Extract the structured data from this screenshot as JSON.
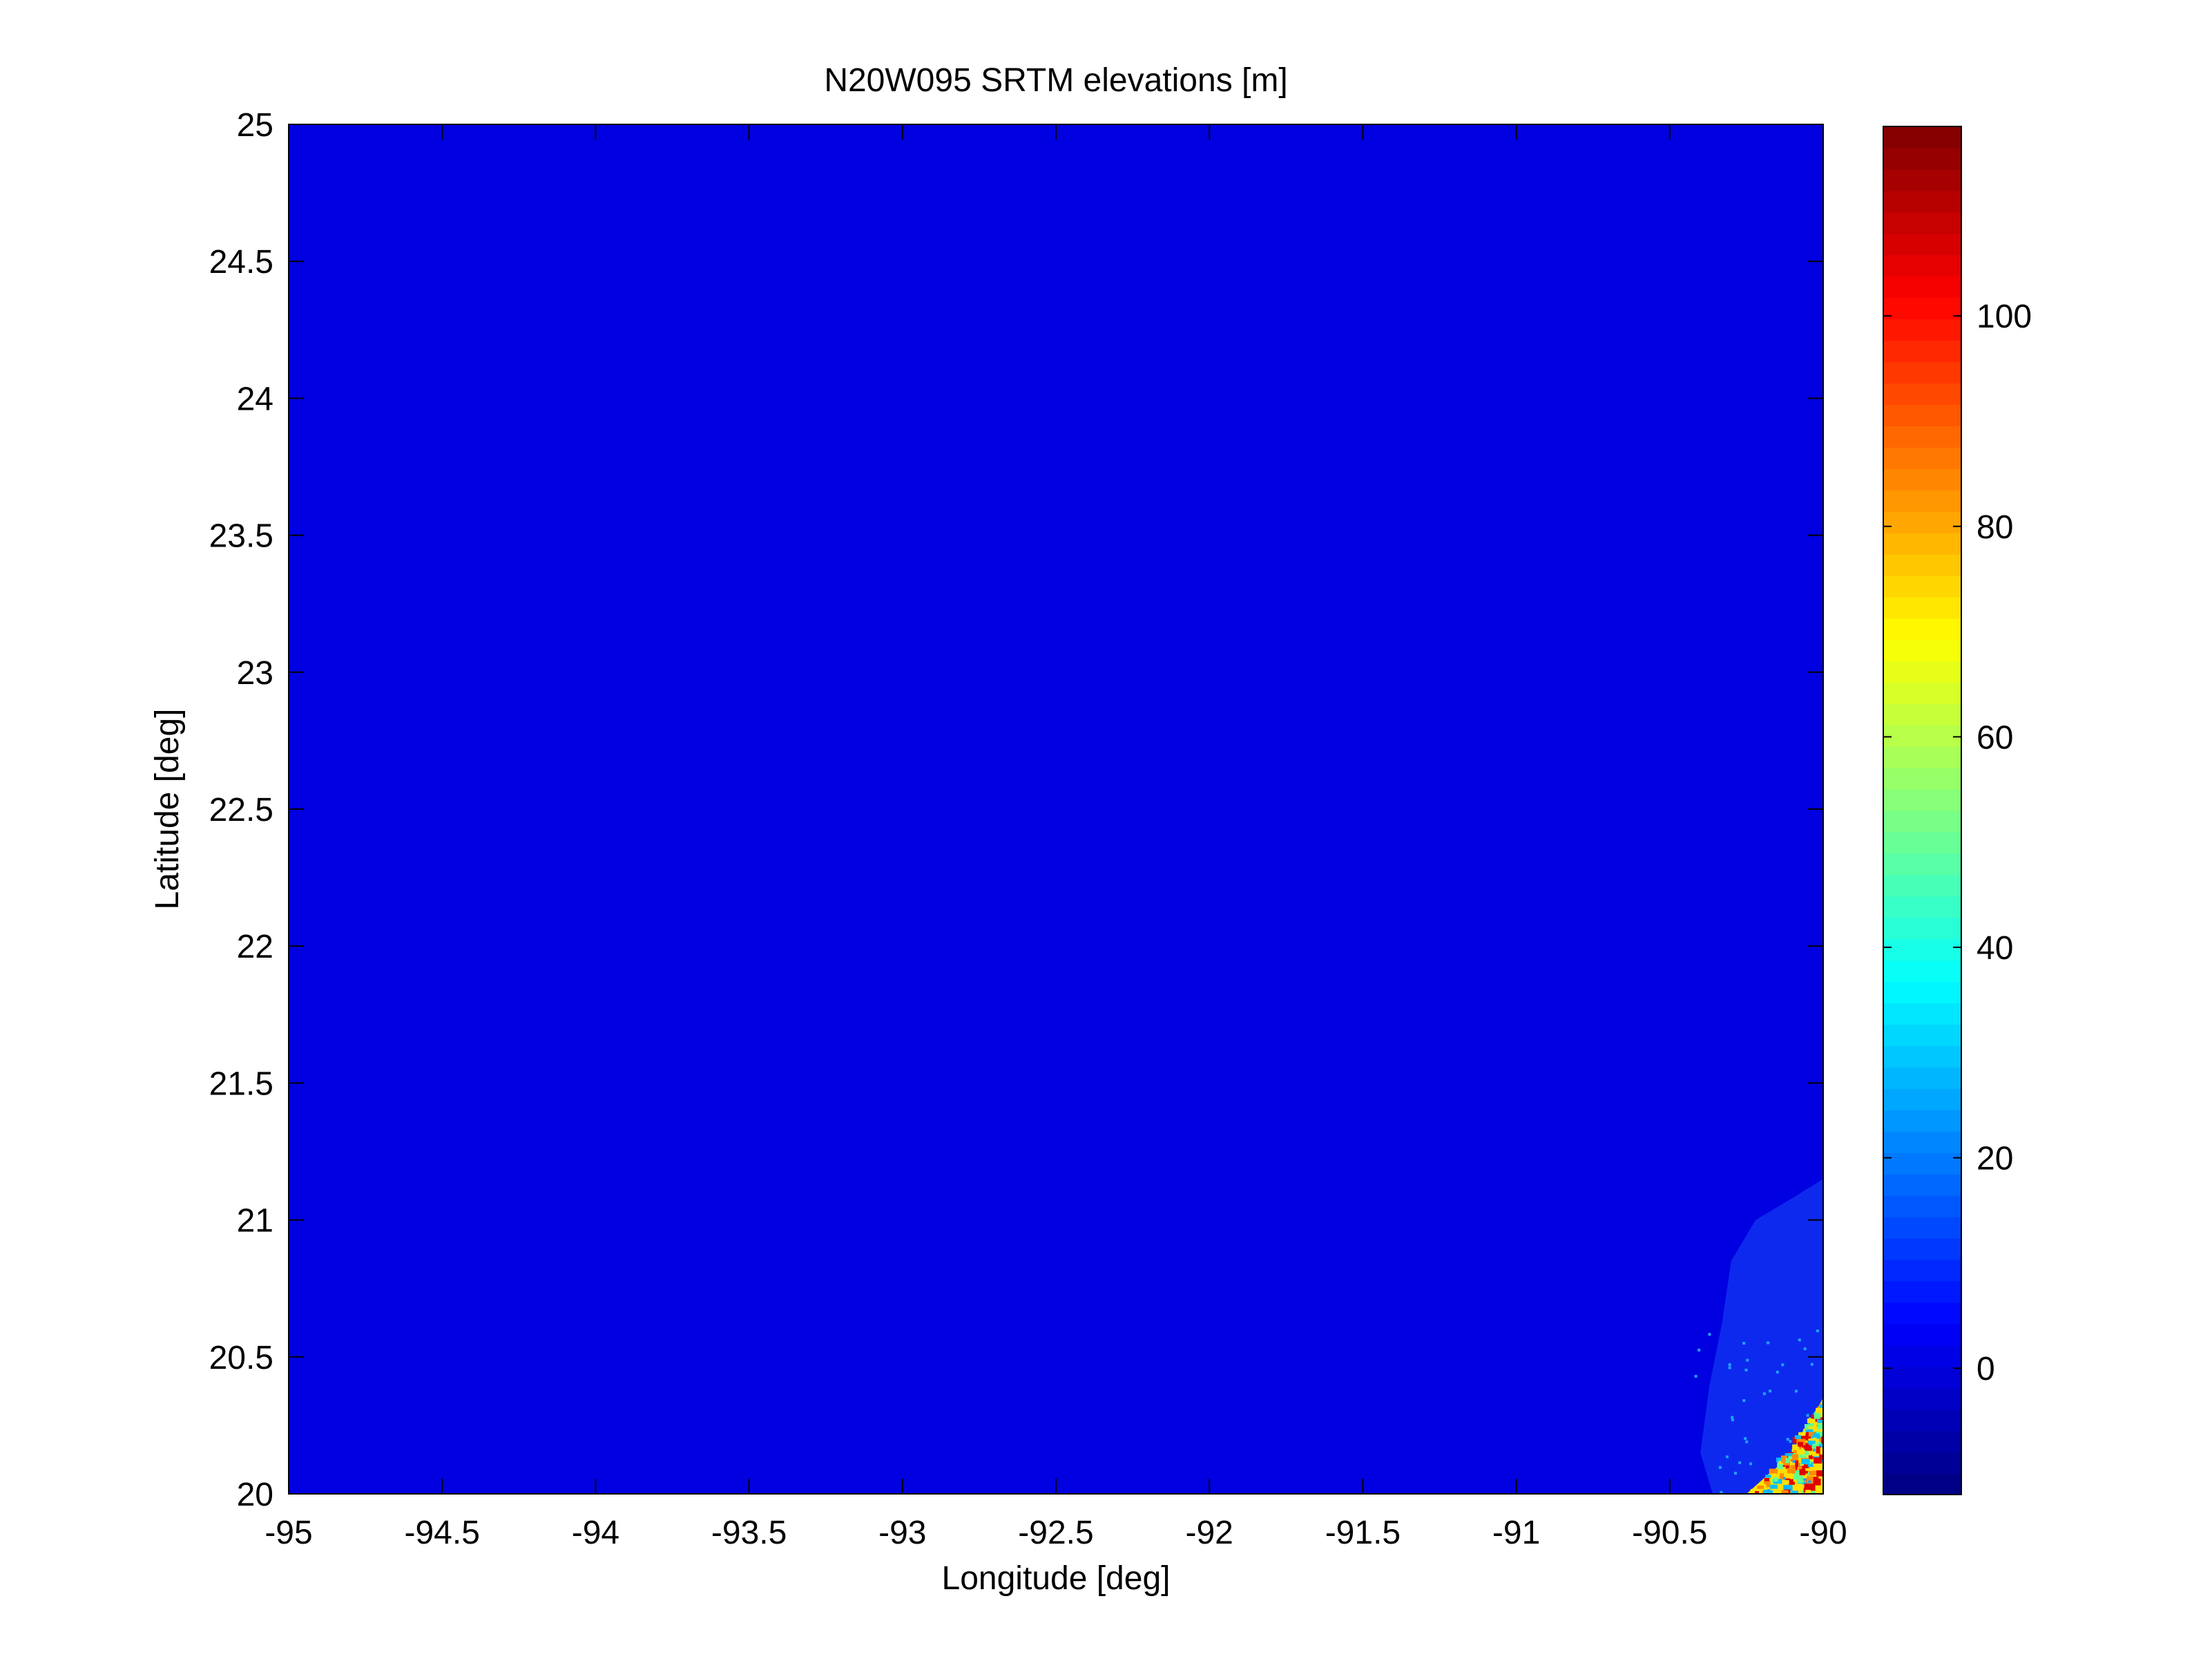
{
  "chart_data": {
    "type": "heatmap",
    "title": "N20W095 SRTM elevations [m]",
    "xlabel": "Longitude [deg]",
    "ylabel": "Latitude [deg]",
    "xlim": [
      -95,
      -90
    ],
    "ylim": [
      20,
      25
    ],
    "xticks": [
      "-95",
      "-94.5",
      "-94",
      "-93.5",
      "-93",
      "-92.5",
      "-92",
      "-91.5",
      "-91",
      "-90.5",
      "-90"
    ],
    "yticks": [
      "20",
      "20.5",
      "21",
      "21.5",
      "22",
      "22.5",
      "23",
      "23.5",
      "24",
      "24.5",
      "25"
    ],
    "colormap": "jet",
    "clim": [
      -12,
      118
    ],
    "colorbar_ticks": [
      "0",
      "20",
      "40",
      "60",
      "80",
      "100"
    ],
    "background_value": 0,
    "background_color": "#0000E0",
    "shallow_shelf_color": "#1030F0",
    "land_region_colors": [
      "#FFE000",
      "#FF8C00",
      "#E00000",
      "#60FF90",
      "#00C0FF"
    ],
    "grid": false,
    "colorbar_position": "right"
  }
}
